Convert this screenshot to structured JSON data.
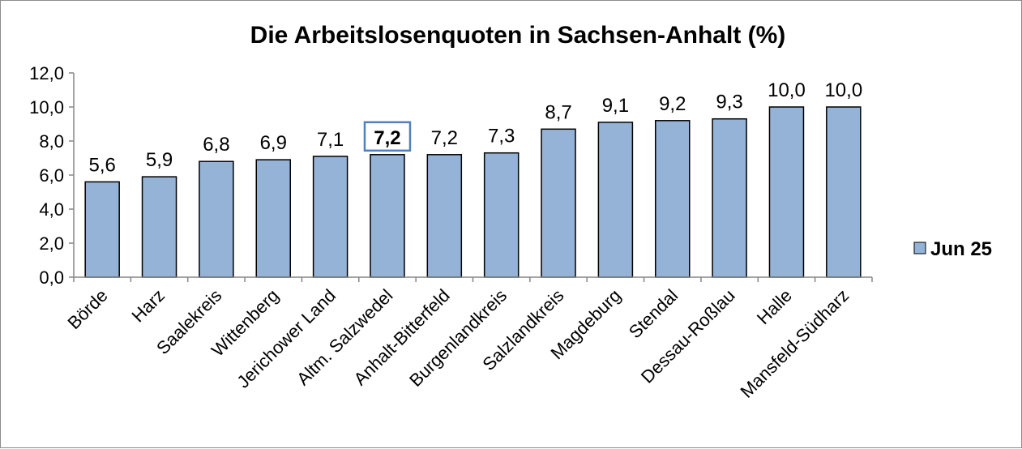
{
  "chart_data": {
    "type": "bar",
    "title": "Die Arbeitslosenquoten in Sachsen-Anhalt (%)",
    "categories": [
      "Börde",
      "Harz",
      "Saalekreis",
      "Wittenberg",
      "Jerichower Land",
      "Altm. Salzwedel",
      "Anhalt-Bitterfeld",
      "Burgenlandkreis",
      "Salzlandkreis",
      "Magdeburg",
      "Stendal",
      "Dessau-Roßlau",
      "Halle",
      "Mansfeld-Südharz"
    ],
    "series": [
      {
        "name": "Jun 25",
        "values": [
          5.6,
          5.9,
          6.8,
          6.9,
          7.1,
          7.2,
          7.2,
          7.3,
          8.7,
          9.1,
          9.2,
          9.3,
          10.0,
          10.0
        ],
        "labels": [
          "5,6",
          "5,9",
          "6,8",
          "6,9",
          "7,1",
          "7,2",
          "7,2",
          "7,3",
          "8,7",
          "9,1",
          "9,2",
          "9,3",
          "10,0",
          "10,0"
        ],
        "color": "#95b3d7"
      }
    ],
    "highlighted_category": "Altm. Salzwedel",
    "ylim": [
      0,
      12
    ],
    "yticks": [
      "0,0",
      "2,0",
      "4,0",
      "6,0",
      "8,0",
      "10,0",
      "12,0"
    ],
    "grid": false,
    "legend_position": "right",
    "highlight_color": "#4f81bd"
  }
}
